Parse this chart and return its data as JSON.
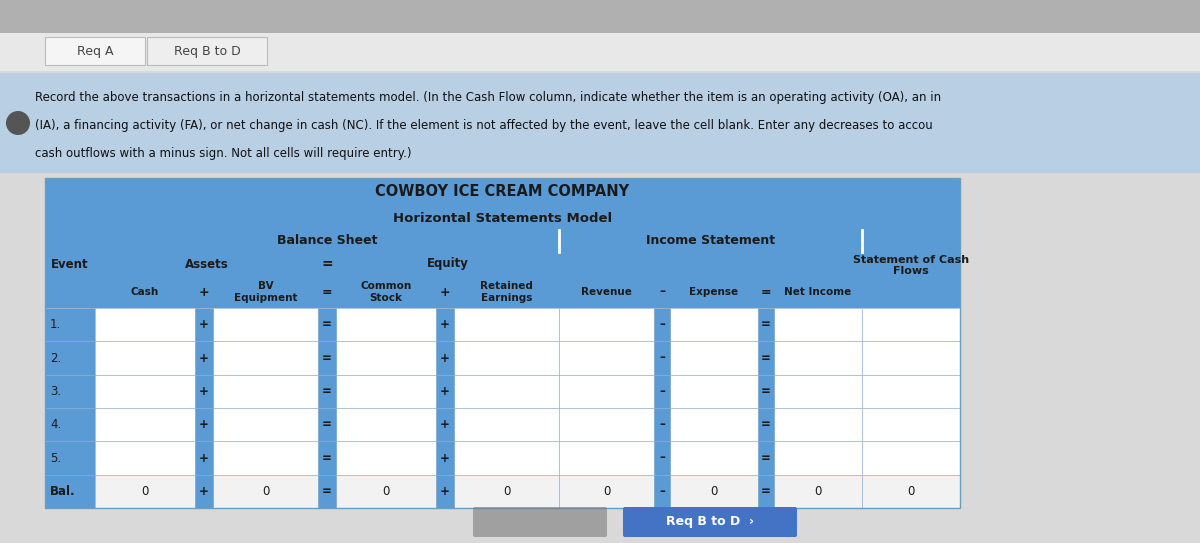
{
  "title": "COWBOY ICE CREAM COMPANY",
  "subtitle": "Horizontal Statements Model",
  "tab1": "Req A",
  "tab2": "Req B to D",
  "instruction_lines": [
    "Record the above transactions in a horizontal statements model. (In the Cash Flow column, indicate whether the item is an operating activity (OA), an in",
    "(IA), a financing activity (FA), or net change in cash (NC). If the element is not affected by the event, leave the cell blank. Enter any decreases to accou",
    "cash outflows with a minus sign. Not all cells will require entry.)"
  ],
  "header_bg": "#5b9bd5",
  "page_bg": "#d9d9d9",
  "instr_bg": "#b8cfe4",
  "white": "#ffffff",
  "light_row": "#ffffff",
  "balance_sheet_header": "Balance Sheet",
  "income_statement_header": "Income Statement",
  "assets_header": "Assets",
  "equity_header": "Equity",
  "event_col": "Event",
  "cash_col": "Cash",
  "bv_equipment_col": "BV\nEquipment",
  "common_stock_col": "Common\nStock",
  "retained_earnings_col": "Retained\nEarnings",
  "revenue_col": "Revenue",
  "expense_col": "Expense",
  "net_income_col": "Net Income",
  "cash_flows_header1": "Statement of Cash",
  "cash_flows_header2": "Flows",
  "rows": [
    "1.",
    "2.",
    "3.",
    "4.",
    "5.",
    "Bal."
  ],
  "button_color": "#4472c4",
  "button_text": "Req B to D  ›",
  "prev_button_color": "#7f7f7f"
}
